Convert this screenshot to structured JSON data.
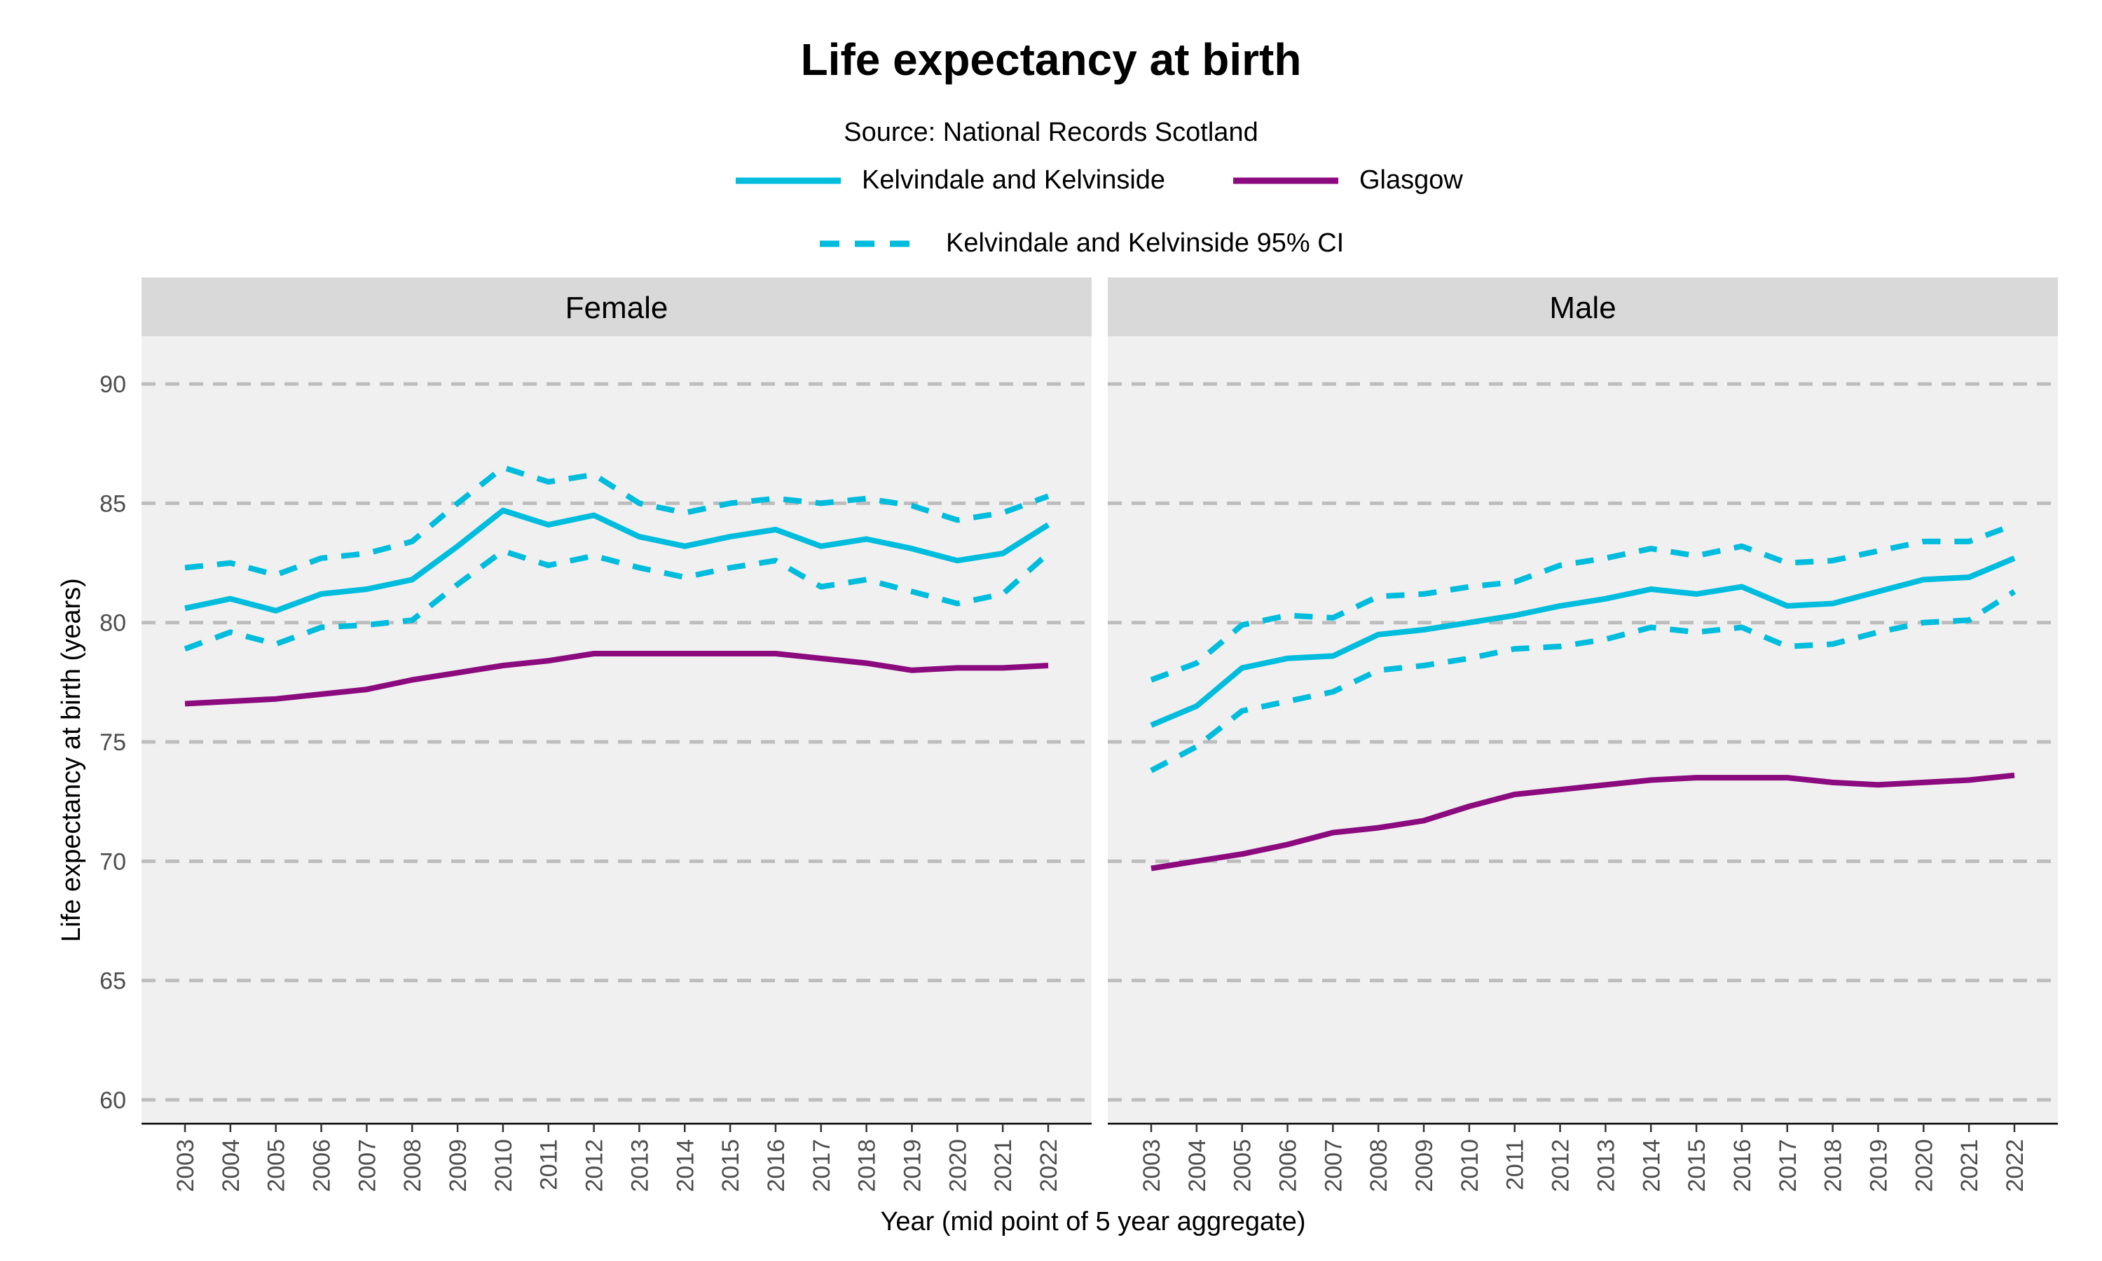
{
  "title": "Life expectancy at birth",
  "subtitle": "Source: National Records Scotland",
  "colors": {
    "area": "#00bcdd",
    "glasgow": "#8b0a7e",
    "panel_bg": "#f0f0f0",
    "strip_bg": "#d9d9d9",
    "grid": "#bdbdbd"
  },
  "legend": {
    "area_label": "Kelvindale and Kelvinside",
    "glasgow_label": "Glasgow",
    "ci_label": "Kelvindale and Kelvinside 95% CI"
  },
  "chart_data": {
    "type": "line",
    "title": "Life expectancy at birth",
    "subtitle": "Source: National Records Scotland",
    "xlabel": "Year (mid point of 5 year aggregate)",
    "ylabel": "Life expectancy at birth (years)",
    "ylim": [
      59,
      92
    ],
    "yticks": [
      60,
      65,
      70,
      75,
      80,
      85,
      90
    ],
    "grid": "horizontal dashed",
    "legend_position": "top",
    "x": [
      2003,
      2004,
      2005,
      2006,
      2007,
      2008,
      2009,
      2010,
      2011,
      2012,
      2013,
      2014,
      2015,
      2016,
      2017,
      2018,
      2019,
      2020,
      2021,
      2022
    ],
    "panels": [
      {
        "label": "Female",
        "series": [
          {
            "name": "Kelvindale and Kelvinside",
            "style": "solid",
            "values": [
              80.6,
              81.0,
              80.5,
              81.2,
              81.4,
              81.8,
              83.2,
              84.7,
              84.1,
              84.5,
              83.6,
              83.2,
              83.6,
              83.9,
              83.2,
              83.5,
              83.1,
              82.6,
              82.9,
              84.1
            ]
          },
          {
            "name": "Kelvindale and Kelvinside 95% CI",
            "bound": "upper",
            "style": "dashed",
            "values": [
              82.3,
              82.5,
              82.0,
              82.7,
              82.9,
              83.4,
              85.0,
              86.5,
              85.9,
              86.2,
              85.0,
              84.6,
              85.0,
              85.2,
              85.0,
              85.2,
              84.9,
              84.3,
              84.6,
              85.3
            ]
          },
          {
            "name": "Kelvindale and Kelvinside 95% CI",
            "bound": "lower",
            "style": "dashed",
            "values": [
              78.9,
              79.6,
              79.1,
              79.8,
              79.9,
              80.1,
              81.6,
              83.0,
              82.4,
              82.8,
              82.3,
              81.9,
              82.3,
              82.6,
              81.5,
              81.8,
              81.3,
              80.8,
              81.2,
              82.9
            ]
          },
          {
            "name": "Glasgow",
            "style": "solid",
            "values": [
              76.6,
              76.7,
              76.8,
              77.0,
              77.2,
              77.6,
              77.9,
              78.2,
              78.4,
              78.7,
              78.7,
              78.7,
              78.7,
              78.7,
              78.5,
              78.3,
              78.0,
              78.1,
              78.1,
              78.2
            ]
          }
        ]
      },
      {
        "label": "Male",
        "series": [
          {
            "name": "Kelvindale and Kelvinside",
            "style": "solid",
            "values": [
              75.7,
              76.5,
              78.1,
              78.5,
              78.6,
              79.5,
              79.7,
              80.0,
              80.3,
              80.7,
              81.0,
              81.4,
              81.2,
              81.5,
              80.7,
              80.8,
              81.3,
              81.8,
              81.9,
              82.7
            ]
          },
          {
            "name": "Kelvindale and Kelvinside 95% CI",
            "bound": "upper",
            "style": "dashed",
            "values": [
              77.6,
              78.3,
              79.9,
              80.3,
              80.2,
              81.1,
              81.2,
              81.5,
              81.7,
              82.4,
              82.7,
              83.1,
              82.8,
              83.2,
              82.5,
              82.6,
              83.0,
              83.4,
              83.4,
              84.1
            ]
          },
          {
            "name": "Kelvindale and Kelvinside 95% CI",
            "bound": "lower",
            "style": "dashed",
            "values": [
              73.8,
              74.8,
              76.3,
              76.7,
              77.1,
              78.0,
              78.2,
              78.5,
              78.9,
              79.0,
              79.3,
              79.8,
              79.6,
              79.8,
              79.0,
              79.1,
              79.6,
              80.0,
              80.1,
              81.3
            ]
          },
          {
            "name": "Glasgow",
            "style": "solid",
            "values": [
              69.7,
              70.0,
              70.3,
              70.7,
              71.2,
              71.4,
              71.7,
              72.3,
              72.8,
              73.0,
              73.2,
              73.4,
              73.5,
              73.5,
              73.5,
              73.3,
              73.2,
              73.3,
              73.4,
              73.6
            ]
          }
        ]
      }
    ]
  }
}
